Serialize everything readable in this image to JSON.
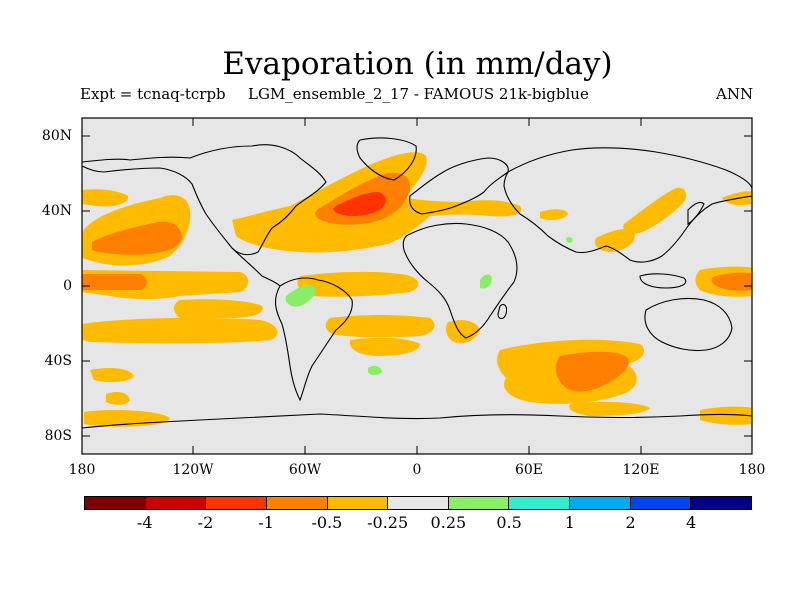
{
  "title": "Evaporation (in mm/day)",
  "subtitle_left": "Expt = tcnaq-tcrpb",
  "subtitle_center": "LGM_ensemble_2_17 - FAMOUS 21k-bigblue",
  "subtitle_right": "ANN",
  "map": {
    "projection": "cylindrical equidistant",
    "lon_range": [
      -180,
      180
    ],
    "lat_range": [
      -90,
      90
    ],
    "background_color": "#e6e6e6",
    "y_tick_labels": [
      "80N",
      "40N",
      "0",
      "40S",
      "80S"
    ],
    "x_tick_labels": [
      "180",
      "120W",
      "60W",
      "0",
      "60E",
      "120E",
      "180"
    ]
  },
  "colorbar": {
    "colors": [
      "#7f0000",
      "#cc0000",
      "#ff3300",
      "#ff7f00",
      "#ffbb00",
      "#e6e6e6",
      "#88ee66",
      "#33eecc",
      "#00aaee",
      "#0044ee",
      "#000088"
    ],
    "labels": [
      "-4",
      "-2",
      "-1",
      "-0.5",
      "-0.25",
      "0.25",
      "0.5",
      "1",
      "2",
      "4"
    ]
  }
}
